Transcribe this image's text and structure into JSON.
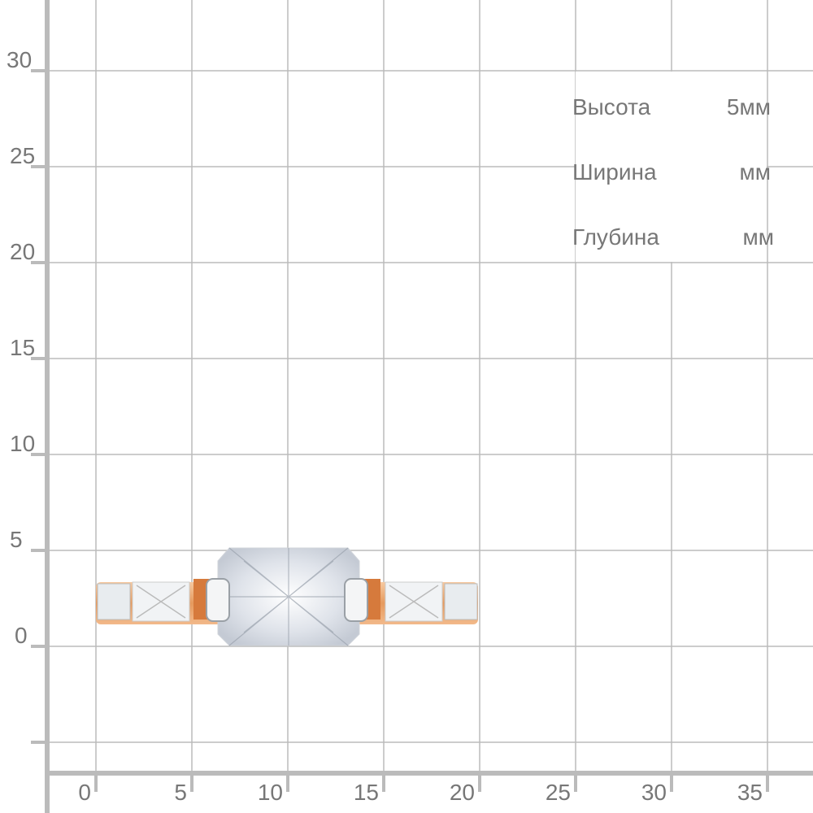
{
  "axes": {
    "y_ticks": [
      "30",
      "25",
      "20",
      "15",
      "10",
      "5",
      "0"
    ],
    "x_ticks": [
      "0",
      "5",
      "10",
      "15",
      "20",
      "25",
      "30",
      "35"
    ],
    "color": "#bbbbbb",
    "label_color": "#777777"
  },
  "dimensions": [
    {
      "label": "Высота",
      "value": "5мм"
    },
    {
      "label": "Ширина",
      "value": "мм"
    },
    {
      "label": "Глубина",
      "value": "мм"
    }
  ],
  "product": {
    "icon": "ring-image",
    "metal_color": "#e9a36b",
    "stone_color": "#e4e8ee"
  }
}
